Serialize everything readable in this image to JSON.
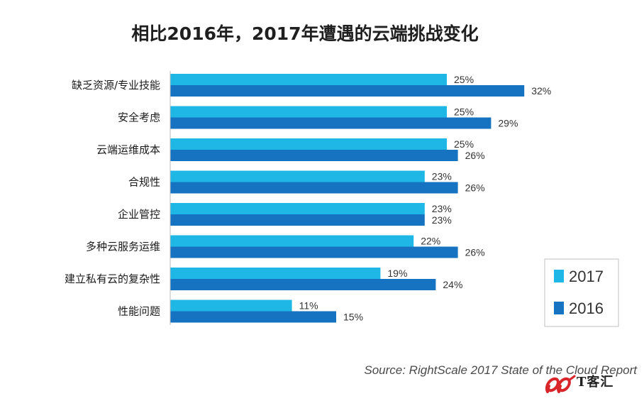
{
  "chart_data": {
    "type": "bar",
    "orientation": "horizontal",
    "title": "相比2016年，2017年遭遇的云端挑战变化",
    "categories": [
      "缺乏资源/专业技能",
      "安全考虑",
      "云端运维成本",
      "合规性",
      "企业管控",
      "多种云服务运维",
      "建立私有云的复杂性",
      "性能问题"
    ],
    "series": [
      {
        "name": "2017",
        "color": "#1fb8e6",
        "values": [
          25,
          25,
          25,
          23,
          23,
          22,
          19,
          11
        ],
        "labels": [
          "25%",
          "25%",
          "25%",
          "23%",
          "23%",
          "22%",
          "19%",
          "11%"
        ]
      },
      {
        "name": "2016",
        "color": "#1673c1",
        "values": [
          32,
          29,
          26,
          26,
          23,
          26,
          24,
          15
        ],
        "labels": [
          "32%",
          "29%",
          "26%",
          "26%",
          "23%",
          "26%",
          "24%",
          "15%"
        ]
      }
    ],
    "xlim": [
      0,
      35
    ],
    "legend_position": "bottom-right",
    "grid": false
  },
  "source": "Source: RightScale 2017 State of the Cloud Report",
  "watermark_text": "T客汇"
}
